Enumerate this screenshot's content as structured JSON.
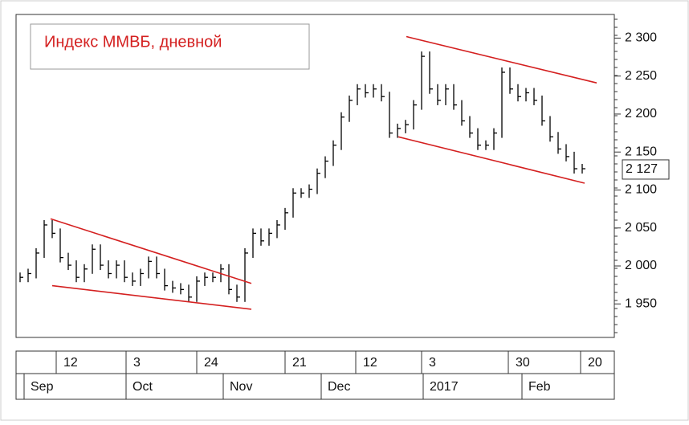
{
  "chart_data": {
    "type": "price-bars",
    "title": "Индекс ММВБ, дневной",
    "color": "#000000",
    "trend_color": "#d42020",
    "values": [
      1985,
      1990,
      2017,
      2054,
      2043,
      2011,
      2001,
      1985,
      1996,
      2022,
      2001,
      1990,
      2001,
      1985,
      1980,
      1990,
      2006,
      1990,
      1974,
      1971,
      1969,
      1959,
      1980,
      1985,
      1985,
      1996,
      1969,
      1959,
      2017,
      2043,
      2033,
      2043,
      2054,
      2070,
      2096,
      2096,
      2101,
      2122,
      2138,
      2159,
      2196,
      2218,
      2233,
      2228,
      2233,
      2223,
      2175,
      2181,
      2186,
      2212,
      2276,
      2233,
      2218,
      2233,
      2212,
      2191,
      2175,
      2159,
      2159,
      2175,
      2255,
      2233,
      2223,
      2228,
      2218,
      2191,
      2170,
      2154,
      2144,
      2128,
      2128
    ],
    "trendlines": [
      {
        "x": [
          3.8,
          28.8
        ],
        "y": [
          2062,
          1977
        ]
      },
      {
        "x": [
          4,
          28.8
        ],
        "y": [
          1974,
          1943
        ]
      },
      {
        "x": [
          47.1,
          70.3
        ],
        "y": [
          2170,
          2109
        ]
      },
      {
        "x": [
          48.1,
          71.8
        ],
        "y": [
          2302,
          2241
        ]
      }
    ],
    "last_price": {
      "value": 2127,
      "label": "2 127"
    },
    "ylim": [
      1908,
      2329
    ],
    "yticks": [
      {
        "value": 1950,
        "label": "1 950"
      },
      {
        "value": 2000,
        "label": "2 000"
      },
      {
        "value": 2050,
        "label": "2 050"
      },
      {
        "value": 2100,
        "label": "2 100"
      },
      {
        "value": 2150,
        "label": "2 150"
      },
      {
        "value": 2200,
        "label": "2 200"
      },
      {
        "value": 2250,
        "label": "2 250"
      },
      {
        "value": 2300,
        "label": "2 300"
      }
    ],
    "day_labels": [
      "12",
      "3",
      "24",
      "21",
      "12",
      "3",
      "30",
      "20"
    ],
    "month_labels": [
      "Sep",
      "Oct",
      "Nov",
      "Dec",
      "2017",
      "Feb"
    ]
  }
}
